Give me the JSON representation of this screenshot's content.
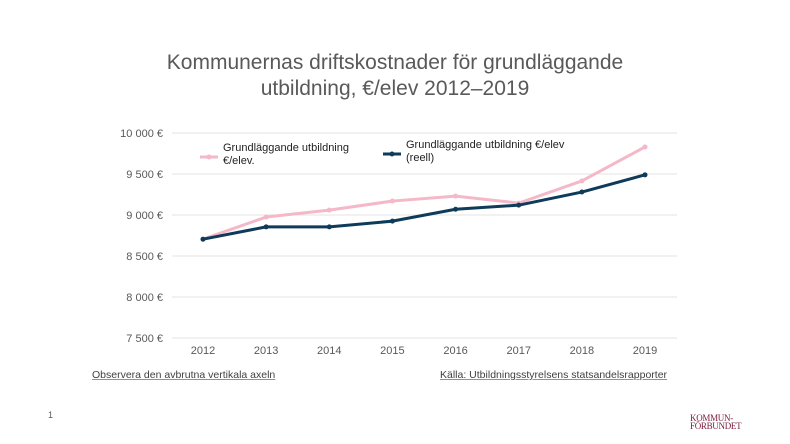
{
  "chart_data": {
    "type": "line",
    "title": "Kommunernas driftskostnader för grundläggande utbildning, €/elev 2012–2019",
    "title_lines": [
      "Kommunernas driftskostnader för grundläggande",
      "utbildning, €/elev 2012–2019"
    ],
    "categories": [
      "2012",
      "2013",
      "2014",
      "2015",
      "2016",
      "2017",
      "2018",
      "2019"
    ],
    "ylim": [
      7500,
      10000
    ],
    "yticks": [
      7500,
      8000,
      8500,
      9000,
      9500,
      10000
    ],
    "ytick_labels": [
      "7 500 €",
      "8 000 €",
      "8 500 €",
      "9 000 €",
      "9 500 €",
      "10 000 €"
    ],
    "grid": true,
    "legend_placement": "top-left",
    "series": [
      {
        "name": "Grundläggande utbildning €/elev.",
        "legend_lines": [
          "Grundläggande utbildning",
          "€/elev."
        ],
        "color": "#f4b8c8",
        "values": [
          8705,
          8975,
          9060,
          9170,
          9230,
          9145,
          9415,
          9830
        ]
      },
      {
        "name": "Grundläggande utbildning €/elev (reell)",
        "legend_lines": [
          "Grundläggande utbildning €/elev",
          "(reell)"
        ],
        "color": "#0f3b5a",
        "values": [
          8705,
          8855,
          8855,
          8925,
          9070,
          9120,
          9280,
          9490
        ]
      }
    ]
  },
  "notes": {
    "left": "Observera den avbrutna vertikala axeln",
    "right": "Källa: Utbildningsstyrelsens statsandelsrapporter"
  },
  "page_number": "1",
  "logo": "KOMMUNFÖRBUNDET"
}
